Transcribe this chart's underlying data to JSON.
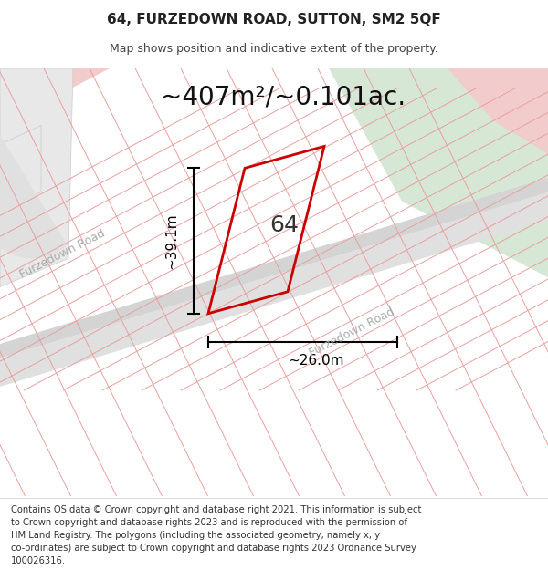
{
  "title_line1": "64, FURZEDOWN ROAD, SUTTON, SM2 5QF",
  "title_line2": "Map shows position and indicative extent of the property.",
  "area_text": "~407m²/~0.101ac.",
  "label_64": "64",
  "dim_vertical": "~39.1m",
  "dim_horizontal": "~26.0m",
  "road_label1": "Furzedown Road",
  "road_label2": "Furzedown Road",
  "footer_lines": [
    "Contains OS data © Crown copyright and database right 2021. This information is subject",
    "to Crown copyright and database rights 2023 and is reproduced with the permission of",
    "HM Land Registry. The polygons (including the associated geometry, namely x, y",
    "co-ordinates) are subject to Crown copyright and database rights 2023 Ordnance Survey",
    "100026316."
  ],
  "map_bg": "#f0f0f0",
  "plot_outline_color": "#cc0000",
  "grid_line_color": "#e8a0a0",
  "dim_line_color": "#000000",
  "title_fontsize": 11,
  "subtitle_fontsize": 9,
  "area_fontsize": 20,
  "label_fontsize": 18,
  "dim_fontsize": 11,
  "footer_fontsize": 7.2
}
